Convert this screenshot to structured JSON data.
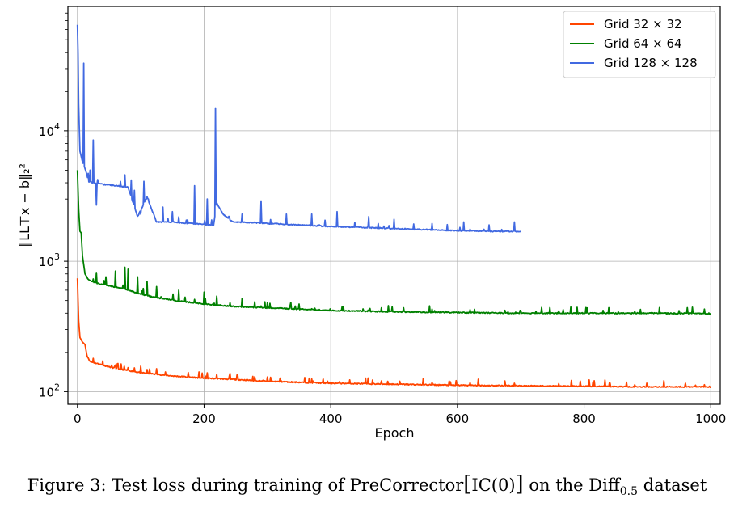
{
  "chart_data": {
    "type": "line",
    "xlabel": "Epoch",
    "ylabel": "‖LL⊤x − b‖₂²",
    "xlim": [
      -15,
      1015
    ],
    "ylim": [
      80,
      90000
    ],
    "yscale": "log",
    "xticks": [
      0,
      200,
      400,
      600,
      800,
      1000
    ],
    "yticks": [
      {
        "value": 100,
        "base": "10",
        "exp": "2"
      },
      {
        "value": 1000,
        "base": "10",
        "exp": "3"
      },
      {
        "value": 10000,
        "base": "10",
        "exp": "4"
      }
    ],
    "grid": true,
    "legend_position": "top-right",
    "series": [
      {
        "name": "Grid 32 × 32",
        "color": "#ff4500",
        "points": [
          [
            0,
            740
          ],
          [
            1,
            500
          ],
          [
            2,
            350
          ],
          [
            4,
            260
          ],
          [
            8,
            240
          ],
          [
            12,
            230
          ],
          [
            15,
            190
          ],
          [
            20,
            170
          ],
          [
            30,
            165
          ],
          [
            50,
            155
          ],
          [
            70,
            148
          ],
          [
            100,
            140
          ],
          [
            150,
            132
          ],
          [
            200,
            127
          ],
          [
            250,
            124
          ],
          [
            300,
            120
          ],
          [
            350,
            118
          ],
          [
            400,
            116
          ],
          [
            500,
            114
          ],
          [
            600,
            112
          ],
          [
            700,
            111
          ],
          [
            800,
            110
          ],
          [
            900,
            109
          ],
          [
            1000,
            109
          ]
        ],
        "spikes": [
          [
            25,
            180
          ],
          [
            40,
            172
          ],
          [
            60,
            160
          ],
          [
            90,
            152
          ],
          [
            125,
            150
          ],
          [
            175,
            140
          ],
          [
            220,
            136
          ],
          [
            280,
            130
          ],
          [
            320,
            127
          ],
          [
            370,
            125
          ],
          [
            430,
            123
          ],
          [
            490,
            120
          ],
          [
            560,
            118
          ],
          [
            620,
            117
          ],
          [
            690,
            116
          ],
          [
            760,
            115
          ],
          [
            840,
            117
          ],
          [
            900,
            114
          ],
          [
            960,
            116
          ],
          [
            990,
            113
          ]
        ]
      },
      {
        "name": "Grid 64 × 64",
        "color": "#008000",
        "points": [
          [
            0,
            5000
          ],
          [
            1,
            3500
          ],
          [
            2,
            2500
          ],
          [
            4,
            1700
          ],
          [
            6,
            1650
          ],
          [
            8,
            1100
          ],
          [
            12,
            800
          ],
          [
            18,
            720
          ],
          [
            30,
            680
          ],
          [
            50,
            650
          ],
          [
            70,
            620
          ],
          [
            100,
            560
          ],
          [
            130,
            520
          ],
          [
            170,
            490
          ],
          [
            200,
            470
          ],
          [
            250,
            450
          ],
          [
            300,
            440
          ],
          [
            350,
            430
          ],
          [
            400,
            420
          ],
          [
            500,
            410
          ],
          [
            600,
            405
          ],
          [
            700,
            400
          ],
          [
            800,
            400
          ],
          [
            900,
            400
          ],
          [
            1000,
            398
          ]
        ],
        "spikes": [
          [
            30,
            820
          ],
          [
            45,
            760
          ],
          [
            60,
            840
          ],
          [
            75,
            900
          ],
          [
            80,
            870
          ],
          [
            95,
            760
          ],
          [
            110,
            700
          ],
          [
            125,
            640
          ],
          [
            160,
            600
          ],
          [
            200,
            580
          ],
          [
            220,
            540
          ],
          [
            260,
            520
          ],
          [
            300,
            480
          ],
          [
            350,
            470
          ],
          [
            420,
            450
          ],
          [
            480,
            440
          ],
          [
            560,
            430
          ],
          [
            620,
            425
          ],
          [
            700,
            420
          ],
          [
            760,
            415
          ],
          [
            830,
            420
          ],
          [
            880,
            412
          ],
          [
            950,
            418
          ],
          [
            990,
            430
          ]
        ]
      },
      {
        "name": "Grid 128 × 128",
        "color": "#4169e1",
        "points": [
          [
            0,
            65000
          ],
          [
            1,
            40000
          ],
          [
            2,
            16000
          ],
          [
            4,
            7000
          ],
          [
            8,
            5800
          ],
          [
            10,
            5500
          ],
          [
            14,
            4800
          ],
          [
            18,
            4100
          ],
          [
            25,
            4000
          ],
          [
            40,
            3900
          ],
          [
            60,
            3800
          ],
          [
            80,
            3700
          ],
          [
            95,
            2200
          ],
          [
            110,
            3100
          ],
          [
            125,
            2000
          ],
          [
            150,
            2000
          ],
          [
            180,
            1950
          ],
          [
            210,
            1900
          ],
          [
            215,
            1900
          ],
          [
            220,
            2800
          ],
          [
            230,
            2300
          ],
          [
            245,
            2000
          ],
          [
            280,
            1980
          ],
          [
            300,
            1950
          ],
          [
            350,
            1900
          ],
          [
            400,
            1850
          ],
          [
            450,
            1820
          ],
          [
            500,
            1780
          ],
          [
            550,
            1750
          ],
          [
            600,
            1720
          ],
          [
            650,
            1700
          ],
          [
            700,
            1690
          ]
        ],
        "spikes": [
          [
            10,
            33000
          ],
          [
            20,
            5000
          ],
          [
            25,
            8500
          ],
          [
            30,
            2700
          ],
          [
            75,
            4600
          ],
          [
            85,
            4200
          ],
          [
            90,
            3500
          ],
          [
            100,
            2300
          ],
          [
            105,
            4100
          ],
          [
            135,
            2600
          ],
          [
            150,
            2400
          ],
          [
            185,
            3800
          ],
          [
            205,
            3000
          ],
          [
            218,
            15000
          ],
          [
            240,
            2200
          ],
          [
            260,
            2300
          ],
          [
            290,
            2900
          ],
          [
            330,
            2300
          ],
          [
            370,
            2300
          ],
          [
            410,
            2400
          ],
          [
            460,
            2200
          ],
          [
            500,
            2100
          ],
          [
            560,
            1950
          ],
          [
            610,
            2000
          ],
          [
            650,
            1900
          ],
          [
            690,
            2000
          ]
        ]
      }
    ]
  },
  "caption": {
    "text": "Figure 3: Test loss during training of PreCorrector",
    "bracket_open": "[",
    "method": "IC(0)",
    "bracket_close": "]",
    "mid": " on the Diff",
    "sub": "0.5",
    "tail": " dataset"
  }
}
